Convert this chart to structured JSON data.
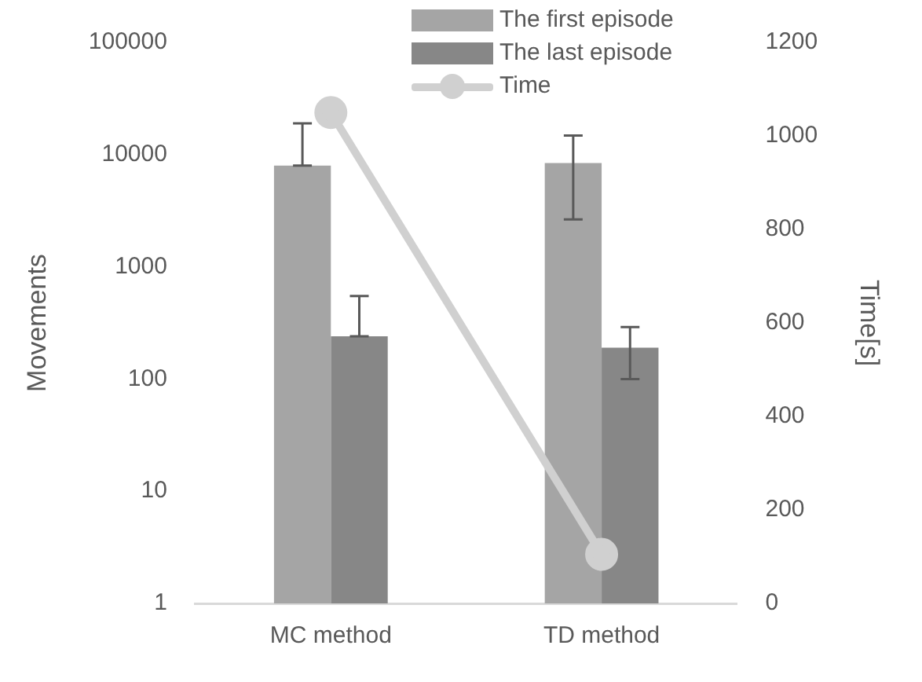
{
  "chart_data": {
    "type": "bar",
    "ylabel": "Movements",
    "y2label": "Time[s]",
    "categories": [
      "MC method",
      "TD method"
    ],
    "series": [
      {
        "name": "The first episode",
        "color": "#a5a5a5",
        "values": [
          8000,
          8400
        ],
        "errors": [
          [
            8000,
            19000
          ],
          [
            2650,
            14800
          ]
        ]
      },
      {
        "name": "The last episode",
        "color": "#878787",
        "values": [
          240,
          190
        ],
        "errors": [
          [
            240,
            550
          ],
          [
            100,
            290
          ]
        ]
      },
      {
        "name": "Time",
        "type": "line",
        "axis": "y2",
        "color": "#d0d0d0",
        "values": [
          1050,
          105
        ]
      }
    ],
    "log": "y",
    "ylim": [
      1,
      100000
    ],
    "yticks": [
      1,
      10,
      100,
      1000,
      10000,
      100000
    ],
    "y2lim": [
      0,
      1200
    ],
    "y2ticks": [
      0,
      200,
      400,
      600,
      800,
      1000,
      1200
    ],
    "grid": false,
    "legend": "top right",
    "marker": "circle",
    "line_style": "solid"
  }
}
